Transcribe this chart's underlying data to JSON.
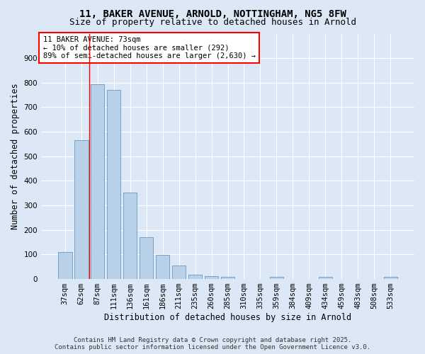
{
  "title_line1": "11, BAKER AVENUE, ARNOLD, NOTTINGHAM, NG5 8FW",
  "title_line2": "Size of property relative to detached houses in Arnold",
  "xlabel": "Distribution of detached houses by size in Arnold",
  "ylabel": "Number of detached properties",
  "categories": [
    "37sqm",
    "62sqm",
    "87sqm",
    "111sqm",
    "136sqm",
    "161sqm",
    "186sqm",
    "211sqm",
    "235sqm",
    "260sqm",
    "285sqm",
    "310sqm",
    "335sqm",
    "359sqm",
    "384sqm",
    "409sqm",
    "434sqm",
    "459sqm",
    "483sqm",
    "508sqm",
    "533sqm"
  ],
  "values": [
    110,
    565,
    793,
    770,
    352,
    170,
    98,
    55,
    18,
    13,
    10,
    0,
    0,
    8,
    0,
    0,
    10,
    0,
    0,
    0,
    8
  ],
  "bar_color": "#b8d0e8",
  "bar_edge_color": "#6899c4",
  "vline_x_index": 1.5,
  "vline_color": "red",
  "annotation_title": "11 BAKER AVENUE: 73sqm",
  "annotation_line1": "← 10% of detached houses are smaller (292)",
  "annotation_line2": "89% of semi-detached houses are larger (2,630) →",
  "annotation_box_color": "red",
  "ylim": [
    0,
    1000
  ],
  "yticks": [
    0,
    100,
    200,
    300,
    400,
    500,
    600,
    700,
    800,
    900
  ],
  "background_color": "#dce8f5",
  "footer_line1": "Contains HM Land Registry data © Crown copyright and database right 2025.",
  "footer_line2": "Contains public sector information licensed under the Open Government Licence v3.0.",
  "grid_color": "#ffffff",
  "title_fontsize": 10,
  "subtitle_fontsize": 9,
  "axis_label_fontsize": 8.5,
  "tick_fontsize": 7.5,
  "annotation_fontsize": 7.5,
  "footer_fontsize": 6.5
}
